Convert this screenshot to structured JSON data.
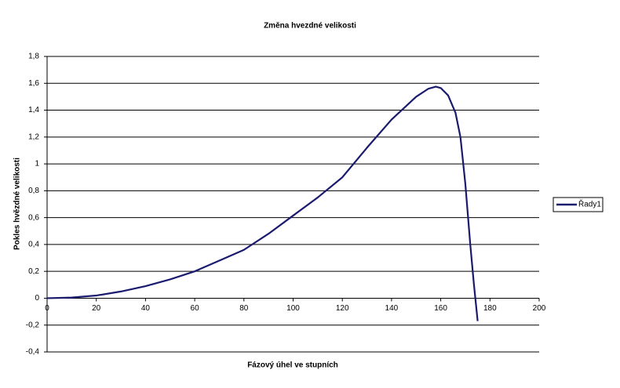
{
  "chart_data": {
    "type": "line",
    "title": "Změna hvezdné velikosti",
    "x_label": "Fázový úhel ve stupních",
    "y_label": "Pokles hvězdné velikosti",
    "x": [
      0,
      10,
      20,
      30,
      40,
      50,
      60,
      70,
      80,
      90,
      100,
      110,
      120,
      130,
      140,
      150,
      155,
      158,
      160,
      163,
      166,
      168,
      170,
      172,
      173.5,
      175
    ],
    "series": [
      {
        "name": "Řady1",
        "color": "#1a1a6e",
        "values": [
          0,
          0.005,
          0.02,
          0.05,
          0.09,
          0.14,
          0.2,
          0.28,
          0.36,
          0.48,
          0.615,
          0.75,
          0.9,
          1.12,
          1.33,
          1.5,
          1.56,
          1.575,
          1.565,
          1.51,
          1.38,
          1.2,
          0.85,
          0.4,
          0.1,
          -0.17
        ]
      }
    ],
    "xlim": [
      0,
      200
    ],
    "xticks": [
      0,
      20,
      40,
      60,
      80,
      100,
      120,
      140,
      160,
      180,
      200
    ],
    "ylim": [
      -0.4,
      1.8
    ],
    "yticks": [
      {
        "value": -0.4,
        "label": "-0,4"
      },
      {
        "value": -0.2,
        "label": "-0,2"
      },
      0,
      {
        "value": 0.2,
        "label": "0,2"
      },
      {
        "value": 0.4,
        "label": "0,4"
      },
      {
        "value": 0.6,
        "label": "0,6"
      },
      {
        "value": 0.8,
        "label": "0,8"
      },
      1,
      {
        "value": 1.2,
        "label": "1,2"
      },
      {
        "value": 1.4,
        "label": "1,4"
      },
      {
        "value": 1.6,
        "label": "1,6"
      },
      {
        "value": 1.8,
        "label": "1,8"
      }
    ],
    "grid": true,
    "legend": "right"
  }
}
